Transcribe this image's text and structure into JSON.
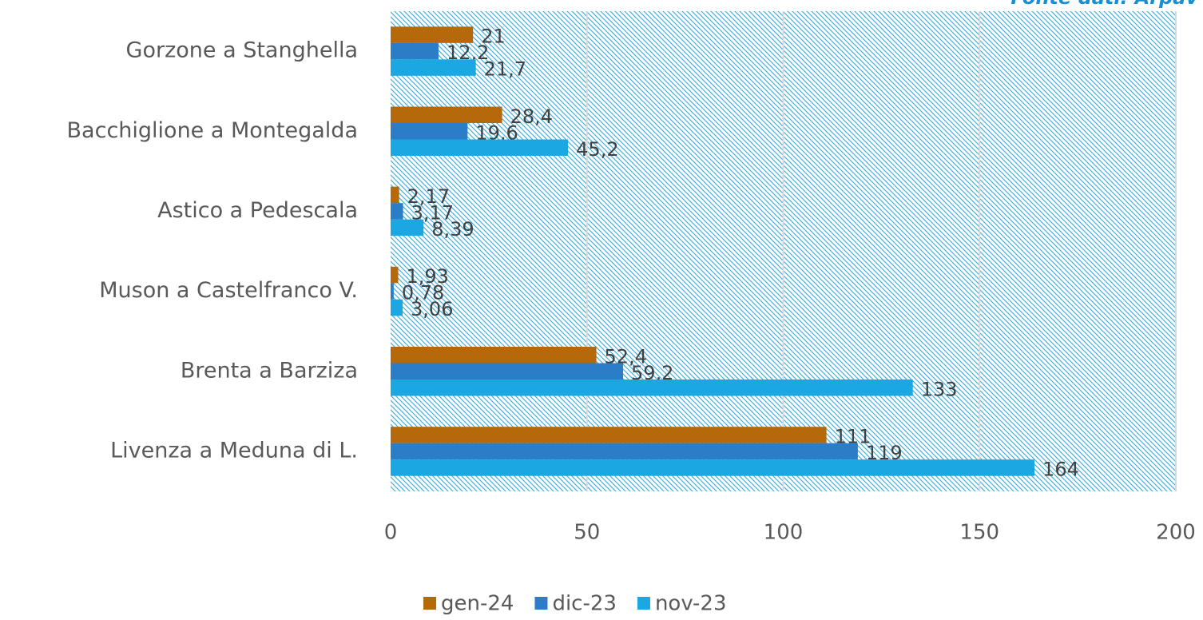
{
  "chart_data": {
    "type": "bar",
    "orientation": "horizontal",
    "annotation": "Fonte dati: Arpav",
    "categories": [
      "Gorzone a Stanghella",
      "Bacchiglione a Montegalda",
      "Astico a Pedescala",
      "Muson a Castelfranco V.",
      "Brenta a Barziza",
      "Livenza a Meduna di L."
    ],
    "series": [
      {
        "name": "gen-24",
        "color": "#b5690b",
        "values": [
          21,
          28.4,
          2.17,
          1.93,
          52.4,
          111
        ],
        "value_labels": [
          "21",
          "28,4",
          "2,17",
          "1,93",
          "52,4",
          "111"
        ]
      },
      {
        "name": "dic-23",
        "color": "#2a7dc6",
        "values": [
          12.2,
          19.6,
          3.17,
          0.78,
          59.2,
          119
        ],
        "value_labels": [
          "12,2",
          "19,6",
          "3,17",
          "0,78",
          "59,2",
          "119"
        ]
      },
      {
        "name": "nov-23",
        "color": "#1ba7e1",
        "values": [
          21.7,
          45.2,
          8.39,
          3.06,
          133,
          164
        ],
        "value_labels": [
          "21,7",
          "45,2",
          "8,39",
          "3,06",
          "133",
          "164"
        ]
      }
    ],
    "xlim": [
      0,
      200
    ],
    "xticks": [
      0,
      50,
      100,
      150,
      200
    ],
    "grid": true,
    "legend": "bottom"
  }
}
